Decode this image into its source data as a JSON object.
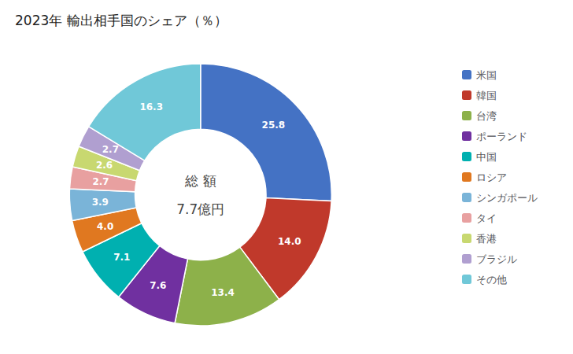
{
  "chart_data": {
    "type": "donut",
    "title": "2023年 輸出相手国のシェア（％）",
    "categories": [
      "米国",
      "韓国",
      "台湾",
      "ポーランド",
      "中国",
      "ロシア",
      "シンガポール",
      "タイ",
      "香港",
      "ブラジル",
      "その他"
    ],
    "values": [
      25.8,
      14.0,
      13.4,
      7.6,
      7.1,
      4.0,
      3.9,
      2.7,
      2.6,
      2.7,
      16.3
    ],
    "value_labels": [
      "25.8",
      "14.0",
      "13.4",
      "7.6",
      "7.1",
      "4.0",
      "3.9",
      "2.7",
      "2.6",
      "2.7",
      "16.3"
    ],
    "colors": [
      "#4472c4",
      "#c0392b",
      "#8db14a",
      "#7030a0",
      "#00b0b0",
      "#e07820",
      "#7ab4d8",
      "#e8a0a0",
      "#c8d870",
      "#b09fd0",
      "#70c8d8"
    ],
    "data_labels": true,
    "legend": "right",
    "annotations": [
      "総 額",
      "7.7億円"
    ]
  }
}
